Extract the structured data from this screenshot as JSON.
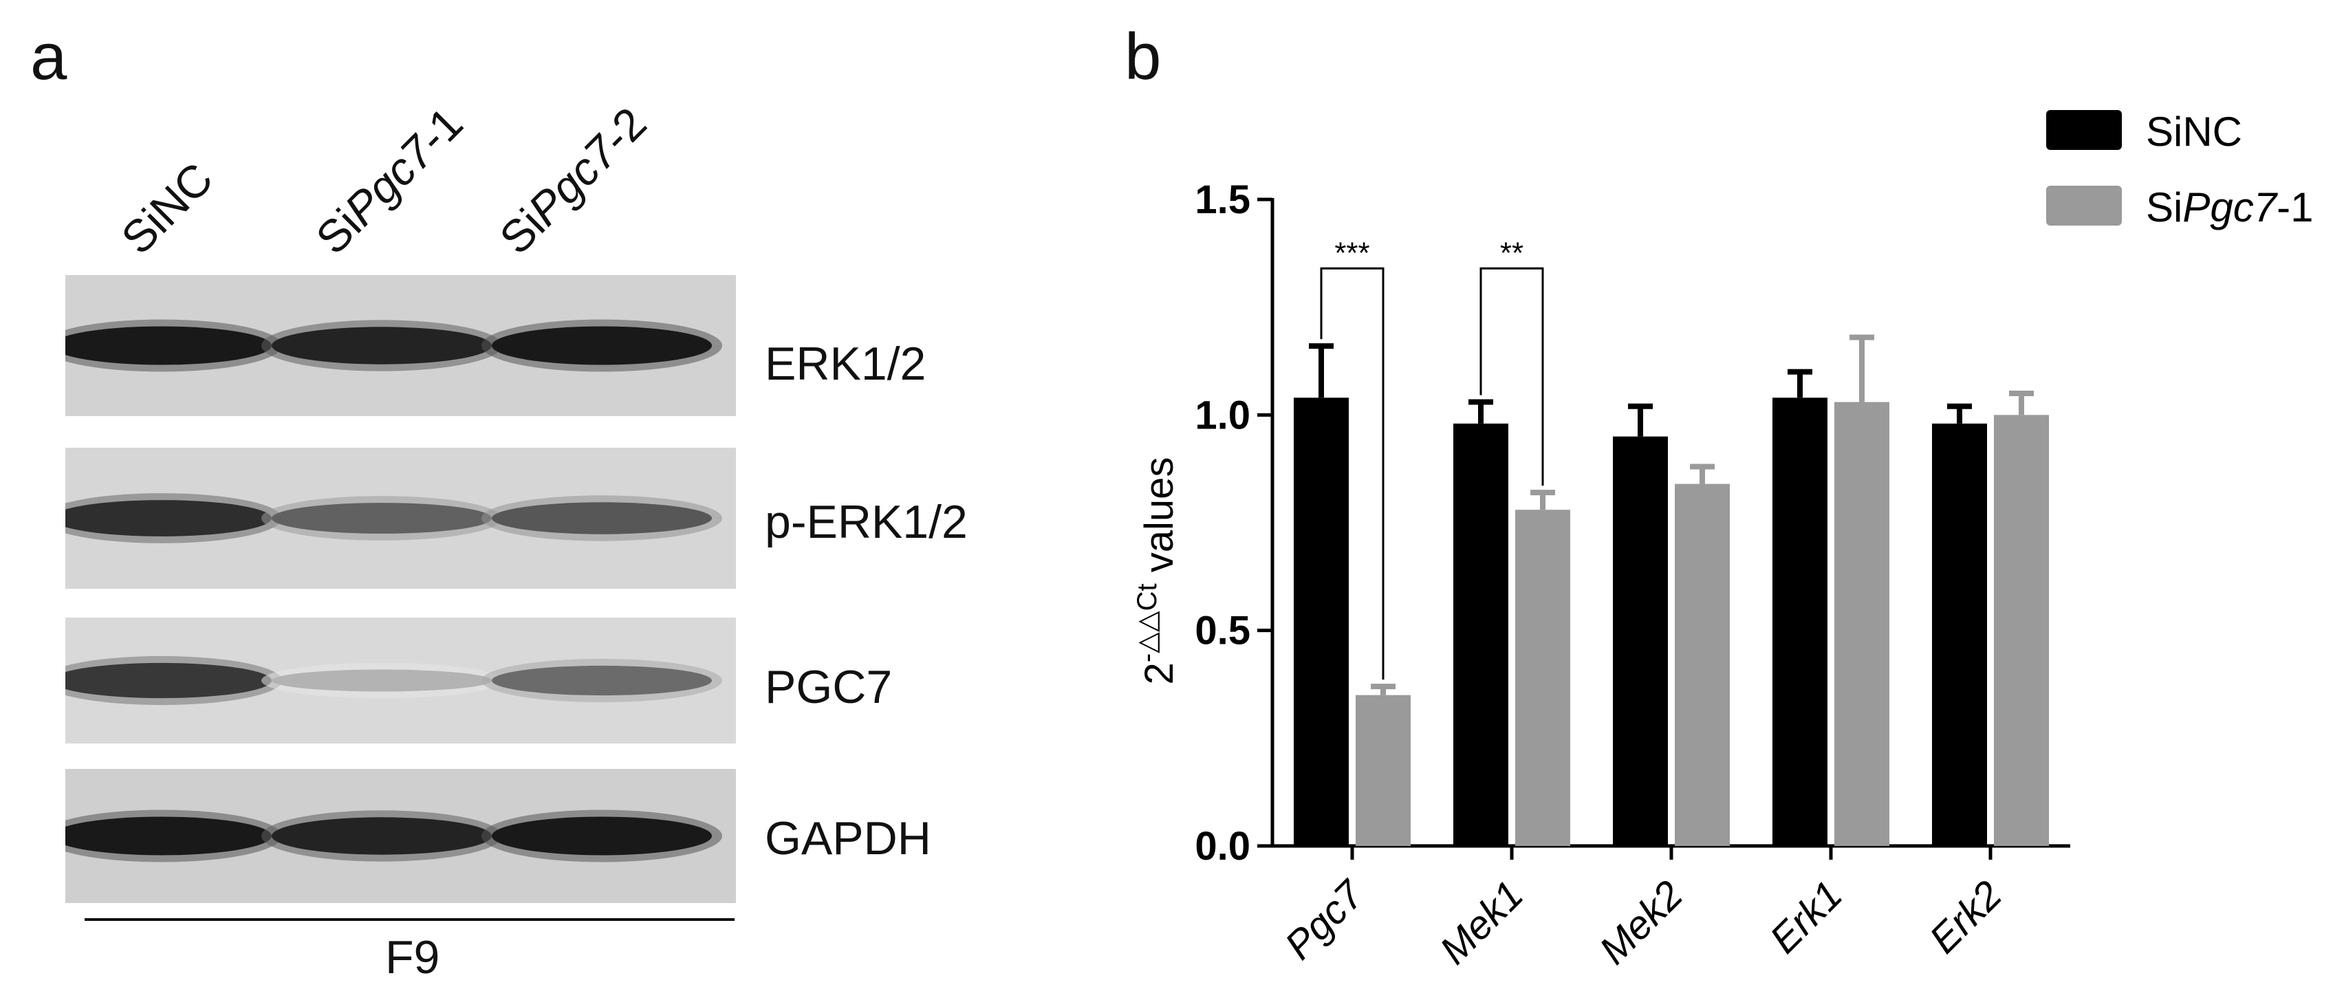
{
  "panels": {
    "a": "a",
    "b": "b"
  },
  "western_blot": {
    "lanes": [
      {
        "pre": "Si",
        "ital": "",
        "post": "NC"
      },
      {
        "pre": "Si",
        "ital": "Pgc7",
        "post": "-1"
      },
      {
        "pre": "Si",
        "ital": "Pgc7",
        "post": "-2"
      }
    ],
    "blots": [
      {
        "label": "ERK1/2",
        "intensity": [
          1.0,
          0.95,
          1.0
        ],
        "background": "#d2d2d2"
      },
      {
        "label": "p-ERK1/2",
        "intensity": [
          0.9,
          0.65,
          0.7
        ],
        "background": "#d6d6d6"
      },
      {
        "label": "PGC7",
        "intensity": [
          0.85,
          0.25,
          0.6
        ],
        "background": "#d9d9d9"
      },
      {
        "label": "GAPDH",
        "intensity": [
          1.0,
          0.95,
          1.0
        ],
        "background": "#cfcfcf"
      }
    ],
    "cell_line": "F9"
  },
  "chart_data": {
    "type": "bar",
    "categories": [
      "Pgc7",
      "Mek1",
      "Mek2",
      "Erk1",
      "Erk2"
    ],
    "series": [
      {
        "name_pre": "SiNC",
        "name_ital": "",
        "name_post": "",
        "color": "#000000",
        "values": [
          1.04,
          0.98,
          0.95,
          1.04,
          0.98
        ],
        "errors": [
          0.12,
          0.05,
          0.07,
          0.06,
          0.04
        ]
      },
      {
        "name_pre": "Si",
        "name_ital": "Pgc7",
        "name_post": "-1",
        "color": "#9a9a9a",
        "values": [
          0.35,
          0.78,
          0.84,
          1.03,
          1.0
        ],
        "errors": [
          0.02,
          0.04,
          0.04,
          0.15,
          0.05
        ]
      }
    ],
    "ylim": [
      0,
      1.5
    ],
    "yticks": [
      "0.0",
      "0.5",
      "1.0",
      "1.5"
    ],
    "ylabel_base": "2",
    "ylabel_sup": "-△△Ct",
    "ylabel_rest": " values",
    "significance": [
      {
        "category": "Pgc7",
        "label": "***",
        "level": 1.34
      },
      {
        "category": "Mek1",
        "label": "**",
        "level": 1.34
      }
    ],
    "legend_position": "top-right",
    "grid": false
  }
}
